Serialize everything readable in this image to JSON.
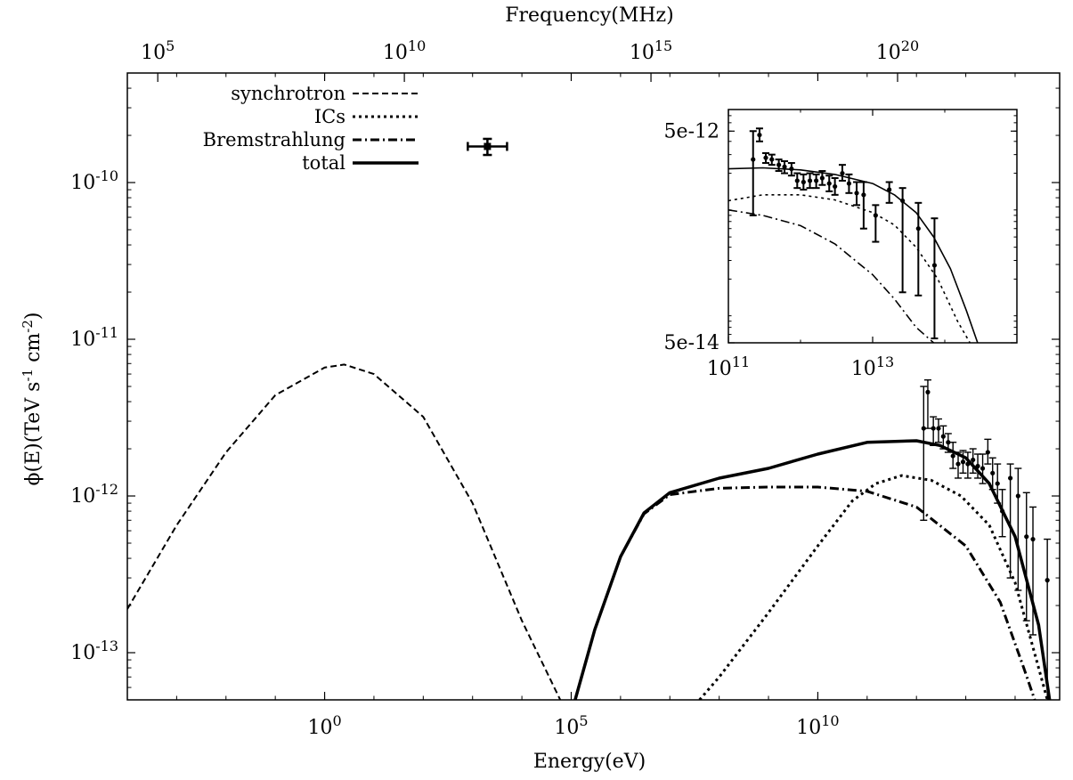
{
  "chart_data": [
    {
      "type": "line",
      "title": "",
      "xlabel": "Energy(eV)",
      "ylabel": "ϕ(E)(TeV s-1 cm-2)",
      "ylabel_parts": {
        "main": "ϕ(E)(TeV s",
        "exp1": "-1",
        "mid": " cm",
        "exp2": "-2",
        "end": ")"
      },
      "top_xlabel": "Frequency(MHz)",
      "xscale": "log",
      "yscale": "log",
      "xlim": [
        0.0001,
        800000000000000.0
      ],
      "ylim": [
        5e-14,
        5e-10
      ],
      "x_ticks": [
        {
          "value": 1,
          "base": "10",
          "exp": "0"
        },
        {
          "value": 100000,
          "base": "10",
          "exp": "5"
        },
        {
          "value": 10000000000,
          "base": "10",
          "exp": "10"
        }
      ],
      "y_ticks": [
        {
          "value": 1e-10,
          "base": "10",
          "exp": "-10"
        },
        {
          "value": 1e-11,
          "base": "10",
          "exp": "-11"
        },
        {
          "value": 1e-12,
          "base": "10",
          "exp": "-12"
        },
        {
          "value": 1e-13,
          "base": "10",
          "exp": "-13"
        }
      ],
      "top_ticks": [
        {
          "energy": 0.000414,
          "base": "10",
          "exp": "5"
        },
        {
          "energy": 41.4,
          "base": "10",
          "exp": "10"
        },
        {
          "energy": 4140000,
          "base": "10",
          "exp": "15"
        },
        {
          "energy": 414000000000,
          "base": "10",
          "exp": "20"
        }
      ],
      "legend_position": "top-left",
      "series": [
        {
          "name": "synchrotron",
          "style": "dashed",
          "x": [
            0.0001,
            0.001,
            0.01,
            0.1,
            1,
            2.5,
            10,
            100,
            1000,
            10000,
            60000
          ],
          "y": [
            1.9e-13,
            6.5e-13,
            1.9e-12,
            4.4e-12,
            6.6e-12,
            6.9e-12,
            6e-12,
            3.2e-12,
            9e-13,
            1.6e-13,
            5e-14
          ]
        },
        {
          "name": "ICs",
          "style": "dotted",
          "x": [
            40000000,
            100000000,
            1000000000,
            10000000000,
            50000000000,
            150000000000,
            500000000000,
            2000000000000,
            8000000000000,
            30000000000000,
            100000000000000,
            300000000000000,
            450000000000000
          ],
          "y": [
            5e-14,
            7e-14,
            1.8e-13,
            4.8e-13,
            9.3e-13,
            1.2e-12,
            1.35e-12,
            1.26e-12,
            1e-12,
            6.5e-13,
            2.8e-13,
            8e-14,
            5e-14
          ]
        },
        {
          "name": "Bremstrahlung",
          "style": "dashdot",
          "x": [
            120000,
            300000,
            1000000,
            3000000,
            10000000,
            100000000,
            1000000000,
            10000000000,
            100000000000,
            1000000000000,
            10000000000000,
            50000000000000,
            150000000000000,
            250000000000000
          ],
          "y": [
            5e-14,
            1.4e-13,
            4.1e-13,
            7.7e-13,
            1.02e-12,
            1.12e-12,
            1.14e-12,
            1.14e-12,
            1.07e-12,
            8.5e-13,
            4.8e-13,
            2.1e-13,
            8e-14,
            5e-14
          ]
        },
        {
          "name": "total",
          "style": "solid-thick",
          "x": [
            120000,
            300000,
            1000000,
            3000000,
            10000000,
            100000000,
            1000000000,
            10000000000,
            100000000000,
            1000000000000,
            3000000000000,
            10000000000000,
            30000000000000,
            100000000000000,
            300000000000000,
            500000000000000
          ],
          "y": [
            5e-14,
            1.4e-13,
            4.1e-13,
            7.8e-13,
            1.05e-12,
            1.3e-12,
            1.5e-12,
            1.85e-12,
            2.2e-12,
            2.25e-12,
            2.1e-12,
            1.75e-12,
            1.2e-12,
            5.5e-13,
            1.5e-13,
            5e-14
          ]
        }
      ],
      "data_points": [
        {
          "x": 1400000000000.0,
          "y": 2.7e-12,
          "lo": 7e-13,
          "hi": 5e-12
        },
        {
          "x": 1700000000000.0,
          "y": 4.6e-12,
          "lo": 2.7e-12,
          "hi": 5.5e-12
        },
        {
          "x": 2200000000000.0,
          "y": 2.7e-12,
          "lo": 2.1e-12,
          "hi": 3.2e-12
        },
        {
          "x": 2800000000000.0,
          "y": 2.7e-12,
          "lo": 2.2e-12,
          "hi": 3.1e-12
        },
        {
          "x": 3500000000000.0,
          "y": 2.4e-12,
          "lo": 2e-12,
          "hi": 2.8e-12
        },
        {
          "x": 4400000000000.0,
          "y": 2.2e-12,
          "lo": 1.9e-12,
          "hi": 2.5e-12
        },
        {
          "x": 5500000000000.0,
          "y": 1.8e-12,
          "lo": 1.5e-12,
          "hi": 2.2e-12
        },
        {
          "x": 7000000000000.0,
          "y": 1.6e-12,
          "lo": 1.3e-12,
          "hi": 1.9e-12
        },
        {
          "x": 8800000000000.0,
          "y": 1.65e-12,
          "lo": 1.4e-12,
          "hi": 1.95e-12
        },
        {
          "x": 11000000000000.0,
          "y": 1.6e-12,
          "lo": 1.3e-12,
          "hi": 1.9e-12
        },
        {
          "x": 14000000000000.0,
          "y": 1.7e-12,
          "lo": 1.4e-12,
          "hi": 2e-12
        },
        {
          "x": 17500000000000.0,
          "y": 1.55e-12,
          "lo": 1.3e-12,
          "hi": 1.85e-12
        },
        {
          "x": 22000000000000.0,
          "y": 1.5e-12,
          "lo": 1.2e-12,
          "hi": 1.85e-12
        },
        {
          "x": 28000000000000.0,
          "y": 1.9e-12,
          "lo": 1.6e-12,
          "hi": 2.3e-12
        },
        {
          "x": 35000000000000.0,
          "y": 1.4e-12,
          "lo": 1.1e-12,
          "hi": 1.75e-12
        },
        {
          "x": 44000000000000.0,
          "y": 1.2e-12,
          "lo": 9e-13,
          "hi": 1.6e-12
        },
        {
          "x": 55000000000000.0,
          "y": 8e-13,
          "lo": 5.5e-13,
          "hi": 1.1e-12
        },
        {
          "x": 80000000000000.0,
          "y": 1.3e-12,
          "lo": 3e-13,
          "hi": 1.6e-12
        },
        {
          "x": 115000000000000.0,
          "y": 1e-12,
          "lo": 2.5e-13,
          "hi": 1.5e-12
        },
        {
          "x": 170000000000000.0,
          "y": 5.5e-13,
          "lo": 1.6e-13,
          "hi": 1.05e-12
        },
        {
          "x": 230000000000000.0,
          "y": 5.3e-13,
          "lo": 1.3e-13,
          "hi": 8.5e-13
        },
        {
          "x": 450000000000000.0,
          "y": 2.9e-13,
          "lo": 1e-14,
          "hi": 5.3e-13
        }
      ],
      "xray_point": {
        "x": 2000,
        "y": 1.7e-10,
        "xerr": [
          800,
          5000
        ],
        "lo": 1.5e-10,
        "hi": 1.9e-10
      }
    },
    {
      "type": "line",
      "title": "inset",
      "xscale": "log",
      "yscale": "log",
      "xlim": [
        100000000000.0,
        1000000000000000.0
      ],
      "ylim": [
        5e-14,
        8e-12
      ],
      "x_ticks": [
        {
          "value": 100000000000.0,
          "base": "10",
          "exp": "11"
        },
        {
          "value": 10000000000000.0,
          "base": "10",
          "exp": "13"
        }
      ],
      "y_ticks": [
        {
          "value": 5e-12,
          "text": "5e-12"
        },
        {
          "value": 5e-14,
          "text": "5e-14"
        }
      ],
      "series": [
        {
          "name": "total",
          "style": "solid",
          "x": [
            100000000000.0,
            300000000000.0,
            1000000000000.0,
            3000000000000.0,
            10000000000000.0,
            20000000000000.0,
            40000000000000.0,
            70000000000000.0,
            120000000000000.0,
            200000000000000.0,
            320000000000000.0
          ],
          "y": [
            2.2e-12,
            2.25e-12,
            2.15e-12,
            1.95e-12,
            1.6e-12,
            1.25e-12,
            8.5e-13,
            5e-13,
            2.5e-13,
            1e-13,
            4e-14
          ]
        },
        {
          "name": "ICs",
          "style": "dotted",
          "x": [
            100000000000.0,
            300000000000.0,
            1000000000000.0,
            3000000000000.0,
            10000000000000.0,
            20000000000000.0,
            40000000000000.0,
            80000000000000.0,
            150000000000000.0,
            270000000000000.0
          ],
          "y": [
            1.1e-12,
            1.25e-12,
            1.25e-12,
            1.12e-12,
            8.5e-13,
            6.5e-13,
            4e-13,
            2e-13,
            8e-14,
            4e-14
          ]
        },
        {
          "name": "Bremstrahlung",
          "style": "dashdot",
          "x": [
            100000000000.0,
            300000000000.0,
            1000000000000.0,
            3000000000000.0,
            10000000000000.0,
            20000000000000.0,
            40000000000000.0,
            70000000000000.0,
            120000000000000.0
          ],
          "y": [
            9e-13,
            8e-13,
            6.4e-13,
            4.3e-13,
            2.2e-13,
            1.3e-13,
            7e-14,
            5e-14,
            3e-14
          ]
        }
      ],
      "data_points": [
        {
          "x": 220000000000.0,
          "y": 2.7e-12,
          "lo": 8e-13,
          "hi": 5e-12
        },
        {
          "x": 270000000000.0,
          "y": 4.6e-12,
          "lo": 4e-12,
          "hi": 5.3e-12
        },
        {
          "x": 330000000000.0,
          "y": 2.8e-12,
          "lo": 2.5e-12,
          "hi": 3.1e-12
        },
        {
          "x": 400000000000.0,
          "y": 2.7e-12,
          "lo": 2.4e-12,
          "hi": 3e-12
        },
        {
          "x": 500000000000.0,
          "y": 2.4e-12,
          "lo": 2.1e-12,
          "hi": 2.7e-12
        },
        {
          "x": 600000000000.0,
          "y": 2.3e-12,
          "lo": 2e-12,
          "hi": 2.6e-12
        },
        {
          "x": 750000000000.0,
          "y": 2.2e-12,
          "lo": 1.9e-12,
          "hi": 2.5e-12
        },
        {
          "x": 900000000000.0,
          "y": 1.7e-12,
          "lo": 1.45e-12,
          "hi": 2e-12
        },
        {
          "x": 1100000000000.0,
          "y": 1.65e-12,
          "lo": 1.4e-12,
          "hi": 1.95e-12
        },
        {
          "x": 1350000000000.0,
          "y": 1.7e-12,
          "lo": 1.45e-12,
          "hi": 2e-12
        },
        {
          "x": 1650000000000.0,
          "y": 1.7e-12,
          "lo": 1.45e-12,
          "hi": 1.95e-12
        },
        {
          "x": 2000000000000.0,
          "y": 1.8e-12,
          "lo": 1.55e-12,
          "hi": 2.1e-12
        },
        {
          "x": 2500000000000.0,
          "y": 1.6e-12,
          "lo": 1.35e-12,
          "hi": 1.9e-12
        },
        {
          "x": 3000000000000.0,
          "y": 1.5e-12,
          "lo": 1.25e-12,
          "hi": 1.8e-12
        },
        {
          "x": 3800000000000.0,
          "y": 2e-12,
          "lo": 1.7e-12,
          "hi": 2.4e-12
        },
        {
          "x": 4700000000000.0,
          "y": 1.6e-12,
          "lo": 1.3e-12,
          "hi": 1.95e-12
        },
        {
          "x": 6000000000000.0,
          "y": 1.3e-12,
          "lo": 1e-12,
          "hi": 1.65e-12
        },
        {
          "x": 7500000000000.0,
          "y": 1.25e-12,
          "lo": 6e-13,
          "hi": 1.65e-12
        },
        {
          "x": 11000000000000.0,
          "y": 8e-13,
          "lo": 4.5e-13,
          "hi": 1e-12
        },
        {
          "x": 17000000000000.0,
          "y": 1.4e-12,
          "lo": 1.05e-12,
          "hi": 1.65e-12
        },
        {
          "x": 26000000000000.0,
          "y": 1.1e-12,
          "lo": 1.5e-13,
          "hi": 1.45e-12
        },
        {
          "x": 43000000000000.0,
          "y": 6e-13,
          "lo": 1.4e-13,
          "hi": 1.05e-12
        },
        {
          "x": 72000000000000.0,
          "y": 2.7e-13,
          "lo": 5.5e-14,
          "hi": 7.5e-13
        }
      ]
    }
  ],
  "legend": {
    "entries": [
      {
        "label": "synchrotron",
        "style": "dashed"
      },
      {
        "label": "ICs",
        "style": "dotted"
      },
      {
        "label": "Bremstrahlung",
        "style": "dashdot"
      },
      {
        "label": "total",
        "style": "solid-thick"
      }
    ]
  }
}
